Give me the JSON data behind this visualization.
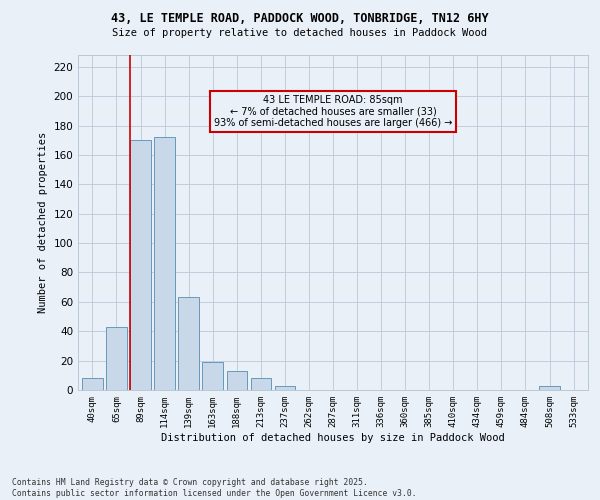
{
  "title_line1": "43, LE TEMPLE ROAD, PADDOCK WOOD, TONBRIDGE, TN12 6HY",
  "title_line2": "Size of property relative to detached houses in Paddock Wood",
  "xlabel": "Distribution of detached houses by size in Paddock Wood",
  "ylabel": "Number of detached properties",
  "categories": [
    "40sqm",
    "65sqm",
    "89sqm",
    "114sqm",
    "139sqm",
    "163sqm",
    "188sqm",
    "213sqm",
    "237sqm",
    "262sqm",
    "287sqm",
    "311sqm",
    "336sqm",
    "360sqm",
    "385sqm",
    "410sqm",
    "434sqm",
    "459sqm",
    "484sqm",
    "508sqm",
    "533sqm"
  ],
  "values": [
    8,
    43,
    170,
    172,
    63,
    19,
    13,
    8,
    3,
    0,
    0,
    0,
    0,
    0,
    0,
    0,
    0,
    0,
    0,
    3,
    0
  ],
  "bar_color": "#c8d8e8",
  "bar_edge_color": "#6699bb",
  "grid_color": "#b8c8d8",
  "background_color": "#eaf0f8",
  "annotation_box_text": "43 LE TEMPLE ROAD: 85sqm\n← 7% of detached houses are smaller (33)\n93% of semi-detached houses are larger (466) →",
  "vline_x_index": 1.55,
  "ylim": [
    0,
    228
  ],
  "yticks": [
    0,
    20,
    40,
    60,
    80,
    100,
    120,
    140,
    160,
    180,
    200,
    220
  ],
  "footnote": "Contains HM Land Registry data © Crown copyright and database right 2025.\nContains public sector information licensed under the Open Government Licence v3.0.",
  "annotation_box_color": "#cc0000",
  "vline_color": "#cc0000"
}
